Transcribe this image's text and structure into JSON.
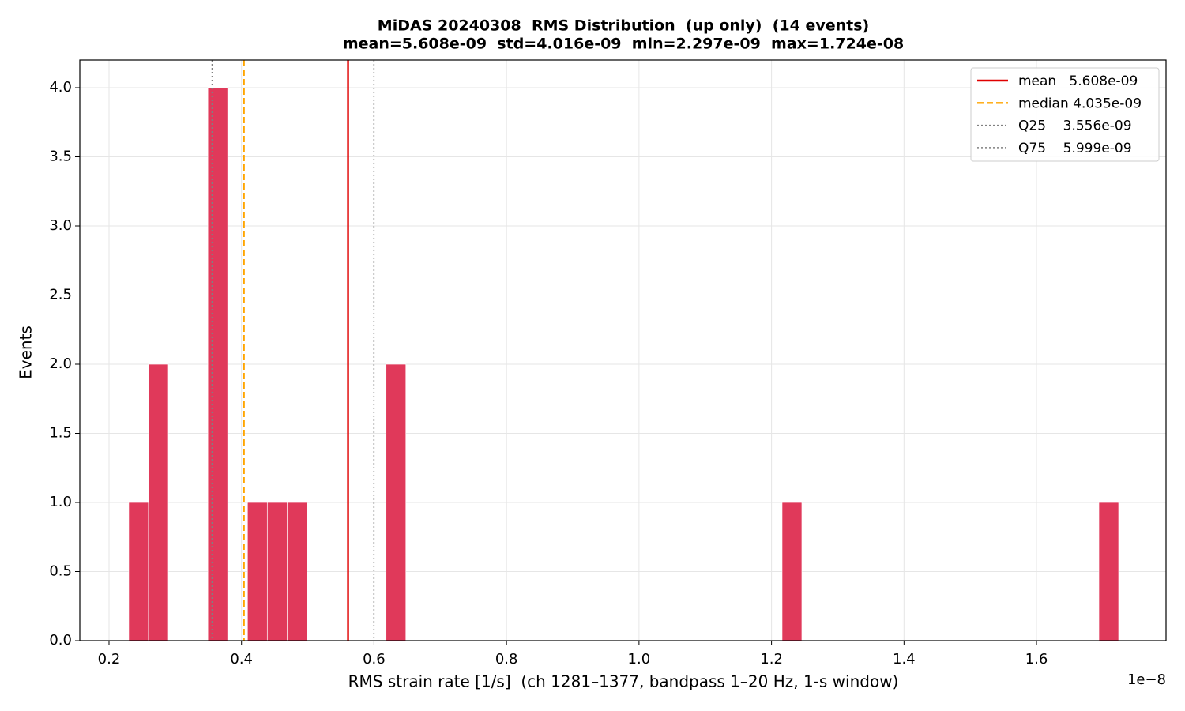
{
  "chart_data": {
    "type": "histogram",
    "title": "MiDAS 20240308  RMS Distribution  (up only)  (14 events)",
    "subtitle": "mean=5.608e-09  std=4.016e-09  min=2.297e-09  max=1.724e-08",
    "x_label": "RMS strain rate [1/s]  (ch 1281–1377, bandpass 1–20 Hz, 1-s window)",
    "x_offset_label": "1e−8",
    "y_label": "Events",
    "color": "#e0395a",
    "bins": [
      0.2297,
      0.2596,
      0.2895,
      0.3193,
      0.3492,
      0.3791,
      0.409,
      0.4389,
      0.4688,
      0.4987,
      0.5286,
      0.5584,
      0.5883,
      0.6182,
      0.6481,
      0.678,
      0.7079,
      0.7378,
      0.7676,
      0.7975,
      0.8274,
      0.8573,
      0.8872,
      0.9171,
      0.947,
      0.9769,
      1.0067,
      1.0366,
      1.0665,
      1.0964,
      1.1263,
      1.1562,
      1.1861,
      1.2159,
      1.2458,
      1.2757,
      1.3056,
      1.3355,
      1.3654,
      1.3953,
      1.4251,
      1.455,
      1.4849,
      1.5148,
      1.5447,
      1.5746,
      1.6045,
      1.6343,
      1.6642,
      1.6941,
      1.724
    ],
    "counts": [
      1,
      2,
      0,
      0,
      4,
      0,
      1,
      1,
      1,
      0,
      0,
      0,
      0,
      2,
      0,
      0,
      0,
      0,
      0,
      0,
      0,
      0,
      0,
      0,
      0,
      0,
      0,
      0,
      0,
      0,
      0,
      0,
      0,
      1,
      0,
      0,
      0,
      0,
      0,
      0,
      0,
      0,
      0,
      0,
      0,
      0,
      0,
      0,
      0,
      1
    ],
    "reference_lines": [
      {
        "name": "mean   5.608e-09",
        "value": 0.5608,
        "color": "#e00000",
        "style": "solid"
      },
      {
        "name": "median 4.035e-09",
        "value": 0.4035,
        "color": "#ffa500",
        "style": "dashed"
      },
      {
        "name": "Q25    3.556e-09",
        "value": 0.3556,
        "color": "#808080",
        "style": "dotted"
      },
      {
        "name": "Q75    5.999e-09",
        "value": 0.5999,
        "color": "#808080",
        "style": "dotted"
      }
    ],
    "xlim": [
      0.1559,
      1.7955
    ],
    "xticks": [
      0.2,
      0.4,
      0.6,
      0.8,
      {
        "value": 1,
        "label": "1.0"
      },
      1.2,
      1.4,
      1.6
    ],
    "ylim": [
      0,
      4.2
    ],
    "yticks": [
      {
        "value": 0,
        "label": "0.0"
      },
      0.5,
      {
        "value": 1,
        "label": "1.0"
      },
      1.5,
      {
        "value": 2,
        "label": "2.0"
      },
      2.5,
      {
        "value": 3,
        "label": "3.0"
      },
      3.5,
      {
        "value": 4,
        "label": "4.0"
      }
    ],
    "grid": true,
    "legend": "upper right"
  }
}
